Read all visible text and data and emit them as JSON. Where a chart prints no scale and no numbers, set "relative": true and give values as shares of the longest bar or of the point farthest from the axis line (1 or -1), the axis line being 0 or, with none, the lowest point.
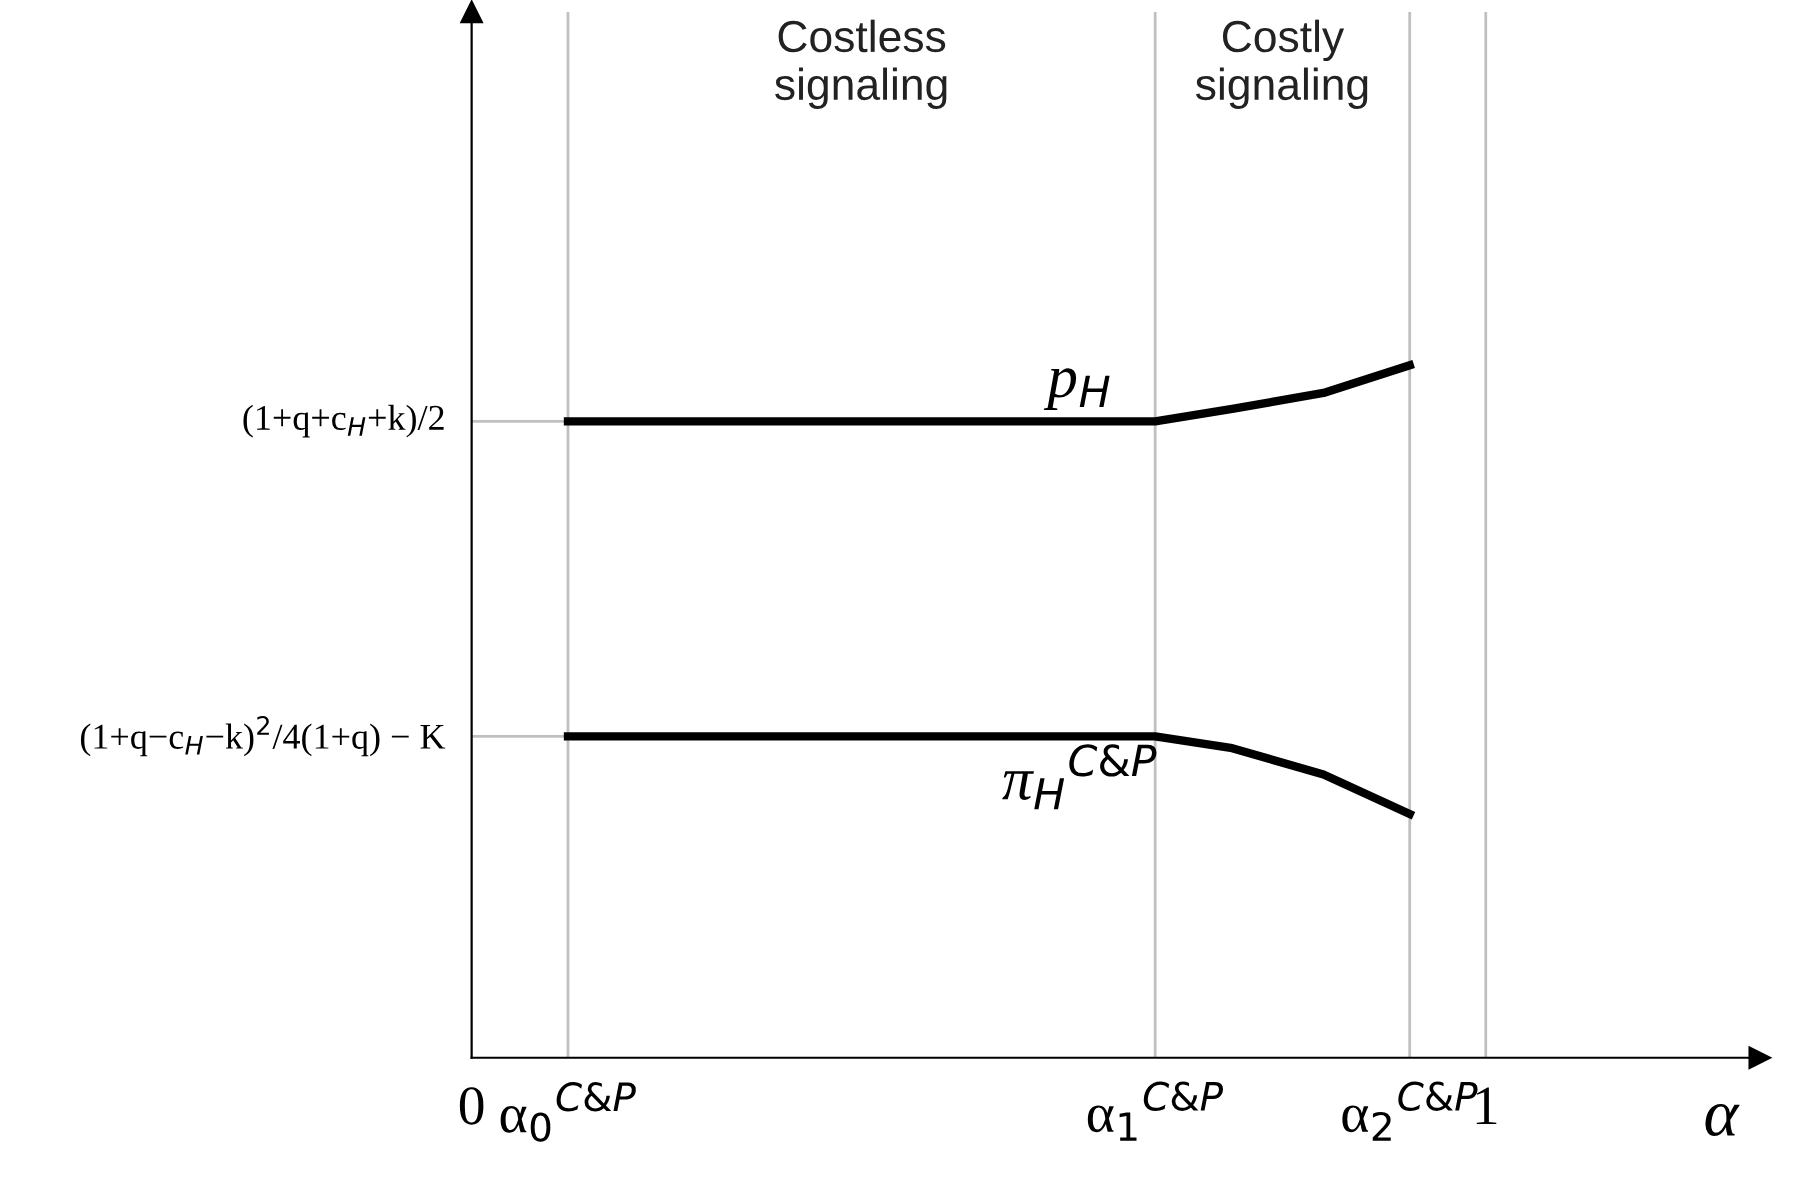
{
  "chart_data": {
    "type": "line",
    "relative": true,
    "xlabel": "α",
    "xlim": [
      0,
      1.27
    ],
    "xticks": [
      0,
      1
    ],
    "series": [
      {
        "name": "p$_{H}$",
        "color": "#000000",
        "x": [
          0.095,
          0.674,
          0.75,
          0.84,
          0.925
        ],
        "values": [
          0.919,
          0.919,
          0.937,
          0.96,
          1.0
        ]
      },
      {
        "name": "π$_{H}$$^{C&P}$",
        "color": "#000000",
        "x": [
          0.095,
          0.674,
          0.75,
          0.84,
          0.925
        ],
        "values": [
          0.464,
          0.464,
          0.447,
          0.409,
          0.352
        ]
      }
    ],
    "ref_lines": [
      {
        "axis": "x",
        "value": 0.095,
        "color": "#c0c0c0",
        "label": "α$_{0}$$^{C&P}$"
      },
      {
        "axis": "x",
        "value": 0.674,
        "color": "#c0c0c0",
        "label": "α$_{1}$$^{C&P}$"
      },
      {
        "axis": "x",
        "value": 0.925,
        "color": "#c0c0c0",
        "label": "α$_{2}$$^{C&P}$"
      },
      {
        "axis": "x",
        "value": 1,
        "color": "#c0c0c0"
      },
      {
        "axis": "y",
        "value": 0.919,
        "color": "#c0c0c0",
        "label": "(1+q+c$_{H}$+k)/2"
      },
      {
        "axis": "y",
        "value": 0.464,
        "color": "#c0c0c0",
        "label": "(1+q−c$_{H}$−k)$^{2}$/4(1+q) − K"
      }
    ],
    "annotations": [
      "Costless\nsignaling",
      "Costly\nsignaling"
    ],
    "legend": false,
    "grid": false,
    "line_style": "solid",
    "marker": "none"
  }
}
